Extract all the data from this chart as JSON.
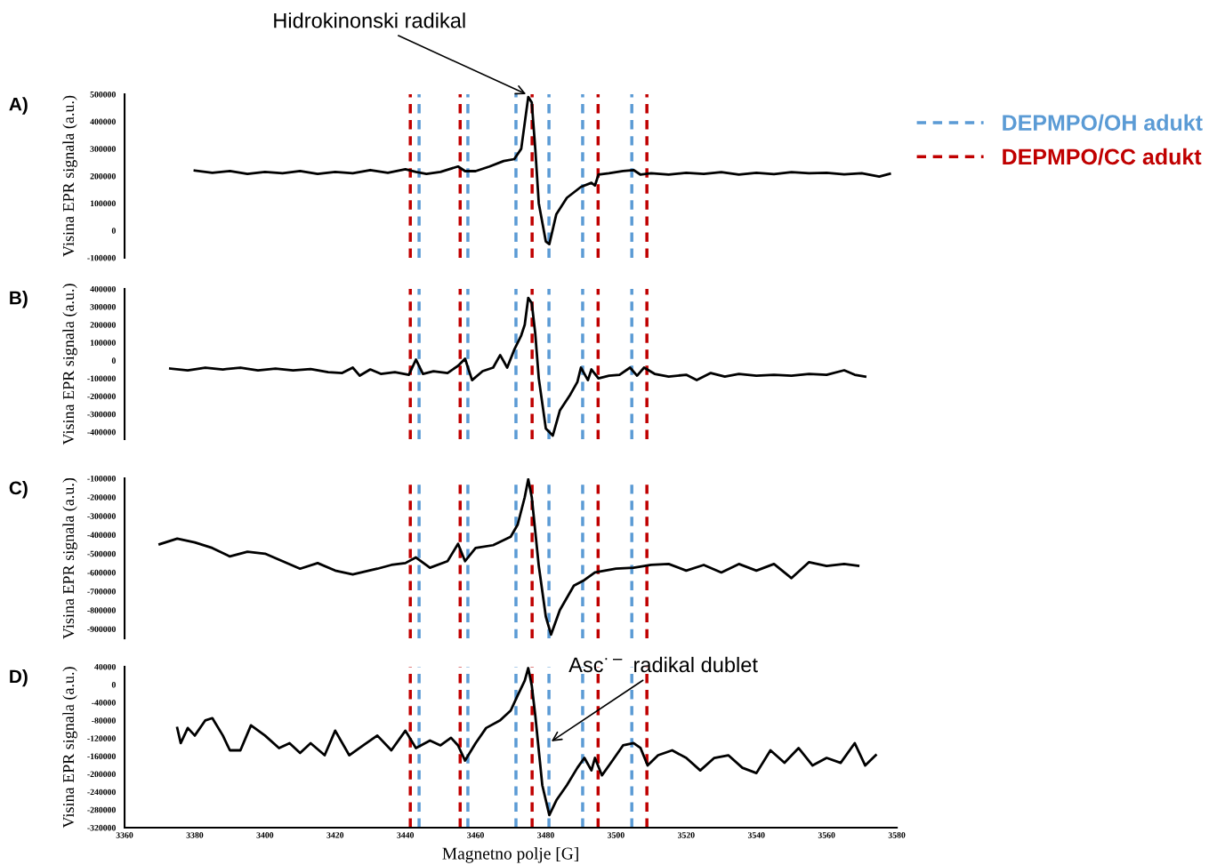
{
  "chart_data": [
    {
      "type": "line",
      "title": "A)",
      "ylabel": "Visina EPR signala (a.u.)",
      "xlim": [
        3360,
        3580
      ],
      "ylim": [
        -100000,
        500000
      ],
      "yticks": [
        -100000,
        0,
        100000,
        200000,
        300000,
        400000,
        500000
      ],
      "tick_labels": "y",
      "legend": "top right",
      "line_style": "solid",
      "marker": "none",
      "x": [
        3380,
        3385,
        3390,
        3395,
        3400,
        3405,
        3410,
        3415,
        3420,
        3425,
        3430,
        3435,
        3440,
        3443,
        3446,
        3450,
        3455,
        3457,
        3460,
        3464,
        3468,
        3471,
        3473,
        3475,
        3476,
        3477,
        3478,
        3480,
        3481,
        3483,
        3486,
        3490,
        3493,
        3494,
        3495,
        3498,
        3502,
        3505,
        3507,
        3510,
        3515,
        3520,
        3525,
        3530,
        3535,
        3540,
        3545,
        3550,
        3555,
        3560,
        3565,
        3570,
        3575,
        3578
      ],
      "series": [
        {
          "color": "#000000",
          "values": [
            220000,
            212000,
            218000,
            208000,
            215000,
            210000,
            218000,
            208000,
            215000,
            210000,
            222000,
            212000,
            225000,
            215000,
            208000,
            215000,
            235000,
            218000,
            218000,
            235000,
            255000,
            262000,
            300000,
            490000,
            470000,
            300000,
            100000,
            -40000,
            -50000,
            60000,
            120000,
            160000,
            175000,
            165000,
            205000,
            210000,
            218000,
            222000,
            205000,
            210000,
            205000,
            212000,
            208000,
            214000,
            205000,
            212000,
            207000,
            214000,
            210000,
            212000,
            206000,
            210000,
            198000,
            208000
          ]
        }
      ],
      "ref_lines": [
        {
          "axis": "x",
          "value": 3441.4,
          "color": "#c00000",
          "line_style": "dashed",
          "label": "DEPMPO/CC adukt"
        },
        {
          "axis": "x",
          "value": 3455.6,
          "color": "#c00000",
          "line_style": "dashed"
        },
        {
          "axis": "x",
          "value": 3476.1,
          "color": "#c00000",
          "line_style": "dashed"
        },
        {
          "axis": "x",
          "value": 3494.9,
          "color": "#c00000",
          "line_style": "dashed"
        },
        {
          "axis": "x",
          "value": 3508.8,
          "color": "#c00000",
          "line_style": "dashed"
        },
        {
          "axis": "x",
          "value": 3443.9,
          "color": "#5b9bd5",
          "line_style": "dashed",
          "label": "DEPMPO/OH adukt"
        },
        {
          "axis": "x",
          "value": 3457.8,
          "color": "#5b9bd5",
          "line_style": "dashed"
        },
        {
          "axis": "x",
          "value": 3471.5,
          "color": "#5b9bd5",
          "line_style": "dashed"
        },
        {
          "axis": "x",
          "value": 3480.9,
          "color": "#5b9bd5",
          "line_style": "dashed"
        },
        {
          "axis": "x",
          "value": 3490.5,
          "color": "#5b9bd5",
          "line_style": "dashed"
        },
        {
          "axis": "x",
          "value": 3504.5,
          "color": "#5b9bd5",
          "line_style": "dashed"
        }
      ],
      "annotations": [
        {
          "text": "Hidrokinonski radikal",
          "x": 3475,
          "y": 497000
        }
      ]
    },
    {
      "type": "line",
      "title": "B)",
      "ylabel": "Visina EPR signala (a.u.)",
      "xlim": [
        3360,
        3580
      ],
      "ylim": [
        -440000,
        400000
      ],
      "yticks": [
        -400000,
        -300000,
        -200000,
        -100000,
        0,
        100000,
        200000,
        300000,
        400000
      ],
      "tick_labels": "y",
      "line_style": "solid",
      "marker": "none",
      "x": [
        3373,
        3378,
        3383,
        3388,
        3393,
        3398,
        3403,
        3408,
        3413,
        3418,
        3422,
        3425,
        3427,
        3430,
        3433,
        3437,
        3441,
        3443,
        3445,
        3448,
        3452,
        3455,
        3457,
        3459,
        3462,
        3465,
        3467,
        3469,
        3471,
        3473,
        3474,
        3475,
        3476,
        3477,
        3478,
        3480,
        3482,
        3484,
        3487,
        3489,
        3490,
        3492,
        3493,
        3495,
        3498,
        3501,
        3504,
        3506,
        3508,
        3511,
        3515,
        3520,
        3523,
        3527,
        3531,
        3535,
        3540,
        3545,
        3550,
        3555,
        3560,
        3565,
        3568,
        3571
      ],
      "series": [
        {
          "color": "#000000",
          "values": [
            -45000,
            -55000,
            -40000,
            -50000,
            -40000,
            -55000,
            -45000,
            -55000,
            -48000,
            -65000,
            -70000,
            -40000,
            -85000,
            -50000,
            -75000,
            -65000,
            -80000,
            5000,
            -75000,
            -60000,
            -70000,
            -30000,
            10000,
            -110000,
            -60000,
            -40000,
            30000,
            -40000,
            60000,
            140000,
            200000,
            350000,
            320000,
            150000,
            -100000,
            -380000,
            -420000,
            -280000,
            -190000,
            -120000,
            -40000,
            -110000,
            -50000,
            -100000,
            -85000,
            -80000,
            -40000,
            -85000,
            -40000,
            -75000,
            -90000,
            -80000,
            -110000,
            -70000,
            -90000,
            -75000,
            -85000,
            -80000,
            -85000,
            -75000,
            -80000,
            -55000,
            -80000,
            -90000
          ]
        }
      ],
      "ref_lines": [
        {
          "axis": "x",
          "value": 3441.4,
          "color": "#c00000",
          "line_style": "dashed"
        },
        {
          "axis": "x",
          "value": 3455.6,
          "color": "#c00000",
          "line_style": "dashed"
        },
        {
          "axis": "x",
          "value": 3476.1,
          "color": "#c00000",
          "line_style": "dashed"
        },
        {
          "axis": "x",
          "value": 3494.9,
          "color": "#c00000",
          "line_style": "dashed"
        },
        {
          "axis": "x",
          "value": 3508.8,
          "color": "#c00000",
          "line_style": "dashed"
        },
        {
          "axis": "x",
          "value": 3443.9,
          "color": "#5b9bd5",
          "line_style": "dashed"
        },
        {
          "axis": "x",
          "value": 3457.8,
          "color": "#5b9bd5",
          "line_style": "dashed"
        },
        {
          "axis": "x",
          "value": 3471.5,
          "color": "#5b9bd5",
          "line_style": "dashed"
        },
        {
          "axis": "x",
          "value": 3480.9,
          "color": "#5b9bd5",
          "line_style": "dashed"
        },
        {
          "axis": "x",
          "value": 3490.5,
          "color": "#5b9bd5",
          "line_style": "dashed"
        },
        {
          "axis": "x",
          "value": 3504.5,
          "color": "#5b9bd5",
          "line_style": "dashed"
        }
      ]
    },
    {
      "type": "line",
      "title": "C)",
      "ylabel": "Visina EPR signala (a.u.)",
      "xlim": [
        3360,
        3580
      ],
      "ylim": [
        -950000,
        -100000
      ],
      "yticks": [
        -900000,
        -800000,
        -700000,
        -600000,
        -500000,
        -400000,
        -300000,
        -200000,
        -100000
      ],
      "tick_labels": "y",
      "line_style": "solid",
      "marker": "none",
      "x": [
        3370,
        3375,
        3380,
        3385,
        3390,
        3395,
        3400,
        3405,
        3410,
        3415,
        3420,
        3425,
        3432,
        3436,
        3440,
        3443,
        3447,
        3452,
        3455,
        3457,
        3460,
        3465,
        3470,
        3472,
        3474,
        3475,
        3476,
        3478,
        3480,
        3481.5,
        3484,
        3488,
        3491,
        3494,
        3500,
        3505,
        3510,
        3515,
        3520,
        3525,
        3530,
        3535,
        3540,
        3545,
        3550,
        3555,
        3560,
        3565,
        3569
      ],
      "series": [
        {
          "color": "#000000",
          "values": [
            -450000,
            -420000,
            -440000,
            -470000,
            -515000,
            -490000,
            -500000,
            -540000,
            -580000,
            -550000,
            -590000,
            -610000,
            -580000,
            -560000,
            -550000,
            -520000,
            -575000,
            -540000,
            -448000,
            -540000,
            -470000,
            -455000,
            -410000,
            -345000,
            -200000,
            -105000,
            -200000,
            -565000,
            -834000,
            -930000,
            -800000,
            -670000,
            -640000,
            -600000,
            -580000,
            -575000,
            -560000,
            -555000,
            -590000,
            -560000,
            -600000,
            -555000,
            -590000,
            -555000,
            -630000,
            -545000,
            -565000,
            -555000,
            -565000
          ]
        }
      ],
      "ref_lines": [
        {
          "axis": "x",
          "value": 3441.4,
          "color": "#c00000",
          "line_style": "dashed"
        },
        {
          "axis": "x",
          "value": 3455.6,
          "color": "#c00000",
          "line_style": "dashed"
        },
        {
          "axis": "x",
          "value": 3476.1,
          "color": "#c00000",
          "line_style": "dashed"
        },
        {
          "axis": "x",
          "value": 3494.9,
          "color": "#c00000",
          "line_style": "dashed"
        },
        {
          "axis": "x",
          "value": 3508.8,
          "color": "#c00000",
          "line_style": "dashed"
        },
        {
          "axis": "x",
          "value": 3443.9,
          "color": "#5b9bd5",
          "line_style": "dashed"
        },
        {
          "axis": "x",
          "value": 3457.8,
          "color": "#5b9bd5",
          "line_style": "dashed"
        },
        {
          "axis": "x",
          "value": 3471.5,
          "color": "#5b9bd5",
          "line_style": "dashed"
        },
        {
          "axis": "x",
          "value": 3480.9,
          "color": "#5b9bd5",
          "line_style": "dashed"
        },
        {
          "axis": "x",
          "value": 3490.5,
          "color": "#5b9bd5",
          "line_style": "dashed"
        },
        {
          "axis": "x",
          "value": 3504.5,
          "color": "#5b9bd5",
          "line_style": "dashed"
        }
      ]
    },
    {
      "type": "line",
      "title": "D)",
      "ylabel": "Visina EPR signala (a.u.)",
      "xlabel": "Magnetno polje [G]",
      "xlim": [
        3360,
        3580
      ],
      "xticks": [
        3360,
        3380,
        3400,
        3420,
        3440,
        3460,
        3480,
        3500,
        3520,
        3540,
        3560,
        3580
      ],
      "ylim": [
        -320000,
        40000
      ],
      "yticks": [
        -320000,
        -280000,
        -240000,
        -200000,
        -160000,
        -120000,
        -80000,
        -40000,
        0,
        40000
      ],
      "line_style": "solid",
      "marker": "none",
      "x": [
        3375,
        3376,
        3378,
        3380,
        3383,
        3385,
        3388,
        3390,
        3393,
        3396,
        3400,
        3404,
        3407,
        3410,
        3413,
        3417,
        3420,
        3424,
        3428,
        3432,
        3436,
        3440,
        3443,
        3447,
        3450,
        3453,
        3455,
        3457,
        3460,
        3463,
        3467,
        3470,
        3472,
        3474,
        3475,
        3476,
        3477,
        3478,
        3479,
        3481,
        3483,
        3486,
        3489,
        3491,
        3493,
        3494,
        3496,
        3499,
        3502,
        3505,
        3507,
        3509,
        3512,
        3516,
        3520,
        3524,
        3528,
        3532,
        3536,
        3540,
        3544,
        3548,
        3552,
        3556,
        3560,
        3564,
        3568,
        3571,
        3574
      ],
      "series": [
        {
          "color": "#000000",
          "values": [
            -97000,
            -131000,
            -97000,
            -114000,
            -80000,
            -75000,
            -114000,
            -147000,
            -147000,
            -91000,
            -114000,
            -142000,
            -131000,
            -153000,
            -131000,
            -158000,
            -103000,
            -158000,
            -136000,
            -114000,
            -147000,
            -103000,
            -142000,
            -125000,
            -136000,
            -119000,
            -136000,
            -170000,
            -131000,
            -97000,
            -80000,
            -58000,
            -24000,
            9000,
            37000,
            -2000,
            -69000,
            -147000,
            -225000,
            -292000,
            -259000,
            -225000,
            -186000,
            -164000,
            -192000,
            -164000,
            -203000,
            -170000,
            -136000,
            -131000,
            -142000,
            -181000,
            -158000,
            -147000,
            -164000,
            -192000,
            -164000,
            -158000,
            -186000,
            -198000,
            -147000,
            -175000,
            -142000,
            -181000,
            -164000,
            -175000,
            -131000,
            -181000,
            -158000
          ]
        }
      ],
      "ref_lines": [
        {
          "axis": "x",
          "value": 3441.4,
          "color": "#c00000",
          "line_style": "dashed"
        },
        {
          "axis": "x",
          "value": 3455.6,
          "color": "#c00000",
          "line_style": "dashed"
        },
        {
          "axis": "x",
          "value": 3476.1,
          "color": "#c00000",
          "line_style": "dashed"
        },
        {
          "axis": "x",
          "value": 3494.9,
          "color": "#c00000",
          "line_style": "dashed"
        },
        {
          "axis": "x",
          "value": 3508.8,
          "color": "#c00000",
          "line_style": "dashed"
        },
        {
          "axis": "x",
          "value": 3443.9,
          "color": "#5b9bd5",
          "line_style": "dashed"
        },
        {
          "axis": "x",
          "value": 3457.8,
          "color": "#5b9bd5",
          "line_style": "dashed"
        },
        {
          "axis": "x",
          "value": 3471.5,
          "color": "#5b9bd5",
          "line_style": "dashed"
        },
        {
          "axis": "x",
          "value": 3480.9,
          "color": "#5b9bd5",
          "line_style": "dashed"
        },
        {
          "axis": "x",
          "value": 3490.5,
          "color": "#5b9bd5",
          "line_style": "dashed"
        },
        {
          "axis": "x",
          "value": 3504.5,
          "color": "#5b9bd5",
          "line_style": "dashed"
        }
      ],
      "annotations": [
        {
          "text": "Asc$^{·−}$ radikal dublet",
          "x": 3481,
          "y": -130000
        }
      ]
    }
  ]
}
